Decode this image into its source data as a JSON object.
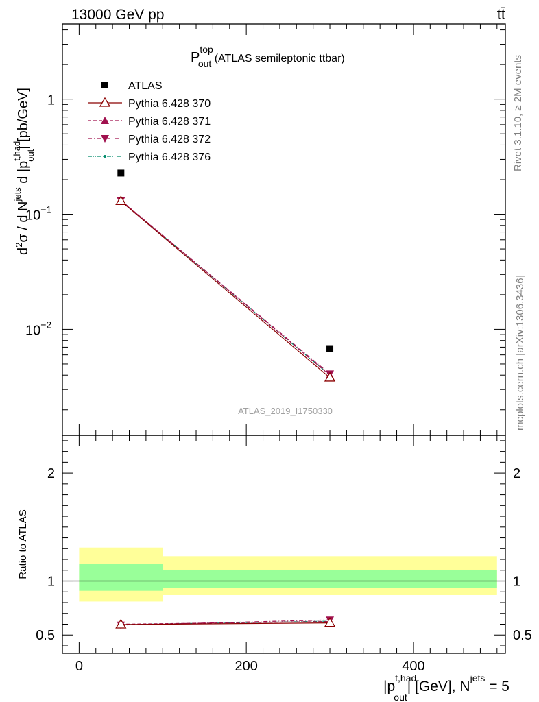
{
  "header": {
    "energy_label": "13000 GeV pp",
    "process_label": "tt̄"
  },
  "side_labels": {
    "rivet": "Rivet 3.1.10, ≥ 2M events",
    "mcplots": "mcplots.cern.ch [arXiv:1306.3436]"
  },
  "watermark": "ATLAS_2019_I1750330",
  "chart_data": [
    {
      "type": "scatter",
      "panel": "main",
      "title": {
        "main": "P",
        "sup": "top",
        "sub": "out",
        "rest": " (ATLAS semileptonic ttbar)"
      },
      "ylabel": "d²σ / d N^jets d |p_out^t,had| [pb/GeV]",
      "yscale": "log",
      "ylim": [
        0.0012,
        4.5
      ],
      "xlim": [
        -20,
        510
      ],
      "y_ticks": [
        {
          "value": 1,
          "label": "1"
        },
        {
          "value": 0.1,
          "label": "10",
          "exp": "−1"
        },
        {
          "value": 0.01,
          "label": "10",
          "exp": "−2"
        }
      ],
      "legend_position": "top-left",
      "series": [
        {
          "name": "ATLAS",
          "marker": "square",
          "color": "#000000",
          "x": [
            50,
            300
          ],
          "y": [
            0.228,
            0.0068
          ]
        },
        {
          "name": "Pythia 6.428 370",
          "marker": "open-triangle-up",
          "line": "solid",
          "color": "#8b0000",
          "x": [
            50,
            300
          ],
          "y": [
            0.13,
            0.0038
          ]
        },
        {
          "name": "Pythia 6.428 371",
          "marker": "triangle-up",
          "line": "dashed",
          "color": "#a0104e",
          "x": [
            50,
            300
          ],
          "y": [
            0.132,
            0.004
          ]
        },
        {
          "name": "Pythia 6.428 372",
          "marker": "triangle-down",
          "line": "dashdot",
          "color": "#a0104e",
          "x": [
            50,
            300
          ],
          "y": [
            0.131,
            0.0041
          ]
        },
        {
          "name": "Pythia 6.428 376",
          "marker": "dot",
          "line": "dashdotdot",
          "color": "#008b6b",
          "x": [
            50,
            300
          ],
          "y": [
            0.131,
            0.004
          ]
        }
      ]
    },
    {
      "type": "line",
      "panel": "ratio",
      "ylabel": "Ratio to ATLAS",
      "xlabel": "|p_out^t,had| [GeV], N^jets = 5",
      "xlim": [
        -20,
        510
      ],
      "ylim": [
        0.33,
        2.35
      ],
      "x_ticks": [
        {
          "value": 0,
          "label": "0"
        },
        {
          "value": 200,
          "label": "200"
        },
        {
          "value": 400,
          "label": "400"
        }
      ],
      "y_ticks": [
        {
          "value": 0.5,
          "label": "0.5"
        },
        {
          "value": 1,
          "label": "1"
        },
        {
          "value": 2,
          "label": "2"
        }
      ],
      "bands": [
        {
          "x_range": [
            0,
            100
          ],
          "stat": [
            0.91,
            1.16
          ],
          "total": [
            0.81,
            1.31
          ]
        },
        {
          "x_range": [
            100,
            500
          ],
          "stat": [
            0.935,
            1.105
          ],
          "total": [
            0.87,
            1.23
          ]
        }
      ],
      "series": [
        {
          "name": "Pythia 6.428 370",
          "x": [
            50,
            300
          ],
          "y": [
            0.597,
            0.612
          ]
        },
        {
          "name": "Pythia 6.428 371",
          "x": [
            50,
            300
          ],
          "y": [
            0.6,
            0.625
          ]
        },
        {
          "name": "Pythia 6.428 372",
          "x": [
            50,
            300
          ],
          "y": [
            0.592,
            0.64
          ]
        },
        {
          "name": "Pythia 6.428 376",
          "x": [
            50,
            300
          ],
          "y": [
            0.596,
            0.628
          ]
        }
      ]
    }
  ]
}
